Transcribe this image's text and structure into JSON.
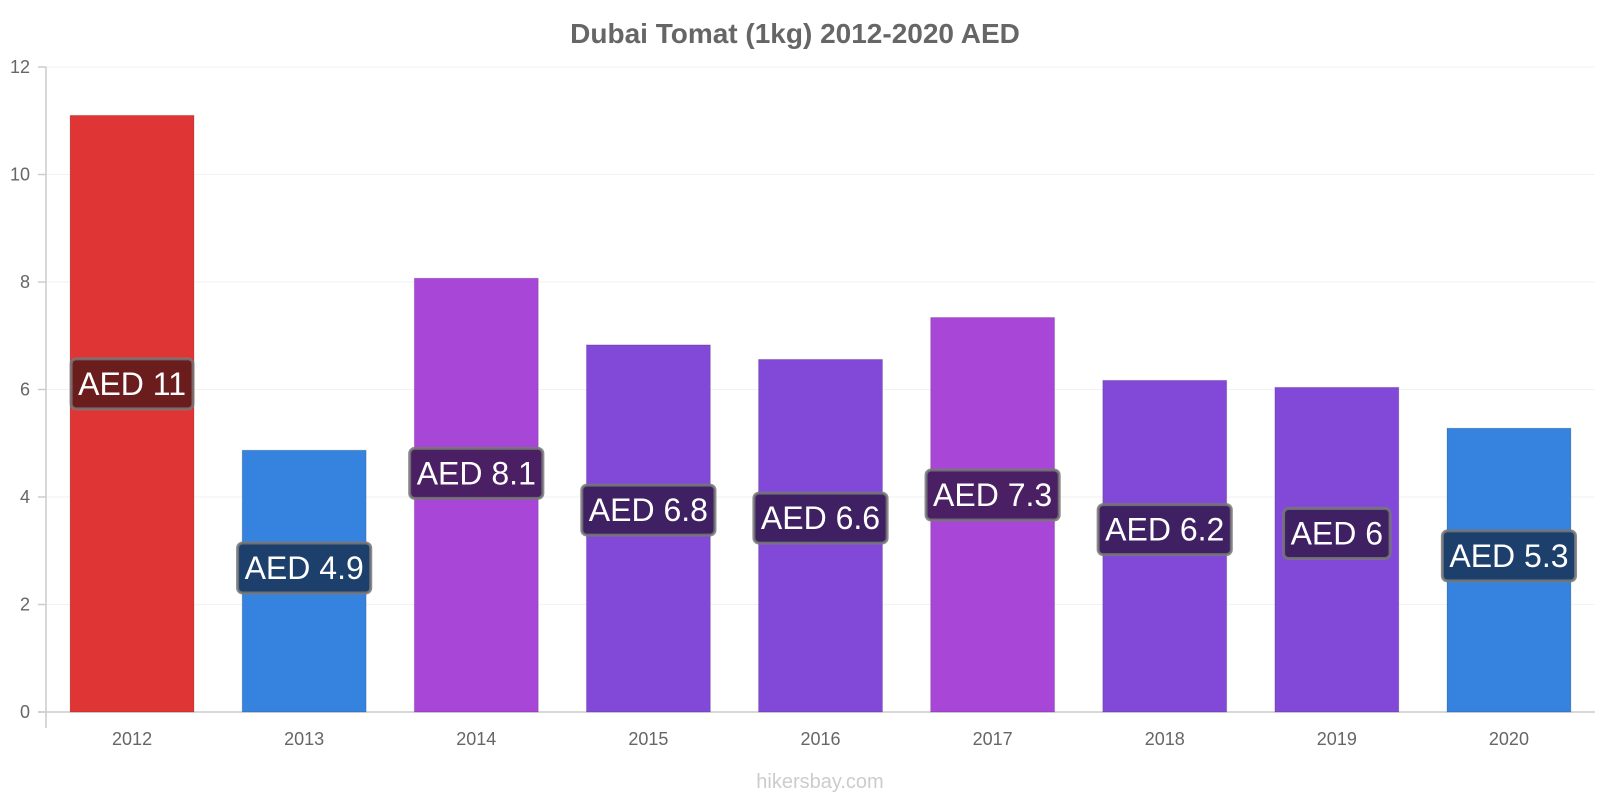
{
  "chart_data": {
    "type": "bar",
    "title": "Dubai Tomat (1kg) 2012-2020 AED",
    "xlabel": "",
    "ylabel": "",
    "ylim": [
      0,
      12
    ],
    "yticks": [
      0,
      2,
      4,
      6,
      8,
      10,
      12
    ],
    "grid": true,
    "categories": [
      "2012",
      "2013",
      "2014",
      "2015",
      "2016",
      "2017",
      "2018",
      "2019",
      "2020"
    ],
    "values": [
      11.1,
      4.87,
      8.07,
      6.83,
      6.56,
      7.34,
      6.17,
      6.04,
      5.28
    ],
    "data_labels": [
      "AED 11",
      "AED 4.9",
      "AED 8.1",
      "AED 6.8",
      "AED 6.6",
      "AED 7.3",
      "AED 6.2",
      "AED 6",
      "AED 5.3"
    ],
    "bar_colors": [
      "#e03535",
      "#3583de",
      "#a846d8",
      "#8249d8",
      "#8249d8",
      "#a846d8",
      "#8249d8",
      "#8249d8",
      "#3583de"
    ],
    "label_box_colors": [
      "#6b1c1c",
      "#1c3f6b",
      "#4a1f63",
      "#3f2163",
      "#3f2163",
      "#4a1f63",
      "#3f2163",
      "#3f2163",
      "#1c3f6b"
    ]
  },
  "credit": "hikersbay.com"
}
